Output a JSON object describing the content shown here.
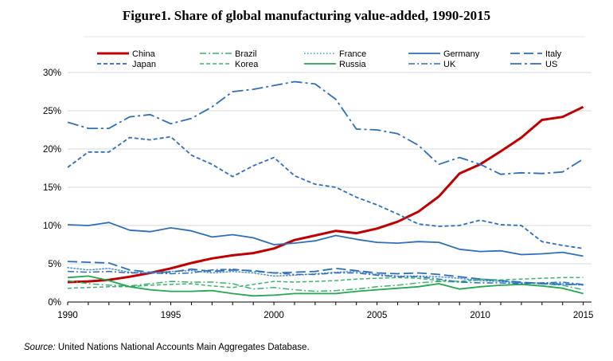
{
  "title": "Figure1. Share of global manufacturing  value-added, 1990-2015",
  "source_label": "Source:",
  "source_text": " United Nations National Accounts Main Aggregates Database.",
  "chart_data": {
    "type": "line",
    "title": "Figure1. Share of global manufacturing  value-added, 1990-2015",
    "xlabel": "",
    "ylabel": "",
    "xlim": [
      1990,
      2015.4
    ],
    "ylim": [
      0,
      30
    ],
    "x_ticks": [
      1990,
      1995,
      2000,
      2005,
      2010,
      2015
    ],
    "y_ticks": [
      0,
      5,
      10,
      15,
      20,
      25,
      30
    ],
    "y_tick_labels": [
      "0%",
      "5%",
      "10%",
      "15%",
      "20%",
      "25%",
      "30%"
    ],
    "grid": "horizontal",
    "legend_position": "top",
    "x": [
      1990,
      1991,
      1992,
      1993,
      1994,
      1995,
      1996,
      1997,
      1998,
      1999,
      2000,
      2001,
      2002,
      2003,
      2004,
      2005,
      2006,
      2007,
      2008,
      2009,
      2010,
      2011,
      2012,
      2013,
      2014,
      2015
    ],
    "series": [
      {
        "name": "China",
        "color": "#c00000",
        "style": "solid",
        "width": 3,
        "legend_row": 0,
        "legend_col": 0,
        "values": [
          2.6,
          2.7,
          2.9,
          3.3,
          3.8,
          4.4,
          5.1,
          5.7,
          6.1,
          6.4,
          7.0,
          8.1,
          8.7,
          9.3,
          9.0,
          9.6,
          10.5,
          11.8,
          13.8,
          16.8,
          18.0,
          19.7,
          21.5,
          23.8,
          24.2,
          25.5
        ]
      },
      {
        "name": "Brazil",
        "color": "#3cb371",
        "style": "dashdot",
        "width": 1.5,
        "legend_row": 0,
        "legend_col": 1,
        "values": [
          2.8,
          2.4,
          2.2,
          2.1,
          2.4,
          2.7,
          2.6,
          2.6,
          2.4,
          1.7,
          1.9,
          1.6,
          1.4,
          1.5,
          1.7,
          2.0,
          2.2,
          2.5,
          2.7,
          2.6,
          2.9,
          2.8,
          2.5,
          2.4,
          2.2,
          1.6
        ]
      },
      {
        "name": "France",
        "color": "#4a8fd6",
        "style": "dotted",
        "width": 1.5,
        "legend_row": 0,
        "legend_col": 2,
        "values": [
          4.5,
          4.2,
          4.4,
          3.9,
          3.8,
          4.0,
          4.1,
          3.8,
          4.0,
          3.8,
          3.4,
          3.5,
          3.7,
          3.9,
          4.0,
          3.6,
          3.4,
          3.4,
          3.3,
          3.1,
          2.8,
          2.7,
          2.5,
          2.5,
          2.4,
          2.2
        ]
      },
      {
        "name": "Germany",
        "color": "#2e6fbc",
        "style": "solid",
        "width": 1.8,
        "legend_row": 0,
        "legend_col": 3,
        "values": [
          10.1,
          10.0,
          10.4,
          9.4,
          9.2,
          9.7,
          9.3,
          8.5,
          8.8,
          8.4,
          7.5,
          7.7,
          8.0,
          8.7,
          8.2,
          7.8,
          7.7,
          7.9,
          7.8,
          6.9,
          6.6,
          6.7,
          6.2,
          6.3,
          6.5,
          6.0
        ]
      },
      {
        "name": "Italy",
        "color": "#2e6fbc",
        "style": "longdash",
        "width": 1.8,
        "legend_row": 0,
        "legend_col": 4,
        "values": [
          5.3,
          5.2,
          5.1,
          4.2,
          3.9,
          3.9,
          4.3,
          4.0,
          4.2,
          4.1,
          3.8,
          3.9,
          4.0,
          4.4,
          4.1,
          3.8,
          3.7,
          3.8,
          3.6,
          3.3,
          3.0,
          2.8,
          2.6,
          2.4,
          2.3,
          2.3
        ]
      },
      {
        "name": "Japan",
        "color": "#2e6fbc",
        "style": "dashed",
        "width": 1.8,
        "legend_row": 1,
        "legend_col": 0,
        "values": [
          17.6,
          19.6,
          19.6,
          21.5,
          21.2,
          21.6,
          19.2,
          18.0,
          16.4,
          17.8,
          18.9,
          16.5,
          15.4,
          15.0,
          13.7,
          12.7,
          11.5,
          10.2,
          9.9,
          10.0,
          10.7,
          10.1,
          10.0,
          7.9,
          7.4,
          7.0
        ]
      },
      {
        "name": "Korea",
        "color": "#3cb371",
        "style": "dashed",
        "width": 1.5,
        "legend_row": 1,
        "legend_col": 1,
        "values": [
          1.8,
          1.9,
          2.0,
          2.0,
          2.2,
          2.3,
          2.4,
          2.1,
          1.9,
          2.3,
          2.7,
          2.6,
          2.7,
          2.8,
          3.0,
          3.1,
          3.2,
          3.1,
          2.8,
          2.7,
          3.0,
          2.9,
          3.0,
          3.1,
          3.2,
          3.2
        ]
      },
      {
        "name": "Russia",
        "color": "#22a84e",
        "style": "solid",
        "width": 1.8,
        "legend_row": 1,
        "legend_col": 2,
        "values": [
          3.2,
          3.4,
          2.8,
          2.0,
          1.6,
          1.4,
          1.4,
          1.5,
          1.1,
          0.8,
          0.9,
          1.1,
          1.1,
          1.1,
          1.4,
          1.6,
          1.8,
          2.0,
          2.4,
          1.7,
          2.0,
          2.2,
          2.3,
          2.1,
          1.8,
          1.1
        ]
      },
      {
        "name": "UK",
        "color": "#2e6fbc",
        "style": "dashdot",
        "width": 1.5,
        "legend_row": 1,
        "legend_col": 3,
        "values": [
          4.0,
          3.9,
          4.0,
          3.8,
          3.8,
          3.7,
          3.8,
          4.2,
          4.3,
          4.0,
          3.8,
          3.6,
          3.6,
          3.8,
          3.8,
          3.5,
          3.3,
          3.3,
          3.0,
          2.6,
          2.5,
          2.5,
          2.4,
          2.5,
          2.6,
          2.3
        ]
      },
      {
        "name": "US",
        "color": "#2e6fbc",
        "style": "longdashdot",
        "width": 1.8,
        "legend_row": 1,
        "legend_col": 4,
        "values": [
          23.5,
          22.7,
          22.7,
          24.2,
          24.5,
          23.3,
          24.0,
          25.5,
          27.5,
          27.8,
          28.3,
          28.8,
          28.5,
          26.5,
          22.6,
          22.5,
          22.0,
          20.5,
          18.0,
          18.9,
          18.0,
          16.7,
          16.9,
          16.8,
          17.0,
          18.7
        ]
      }
    ]
  }
}
